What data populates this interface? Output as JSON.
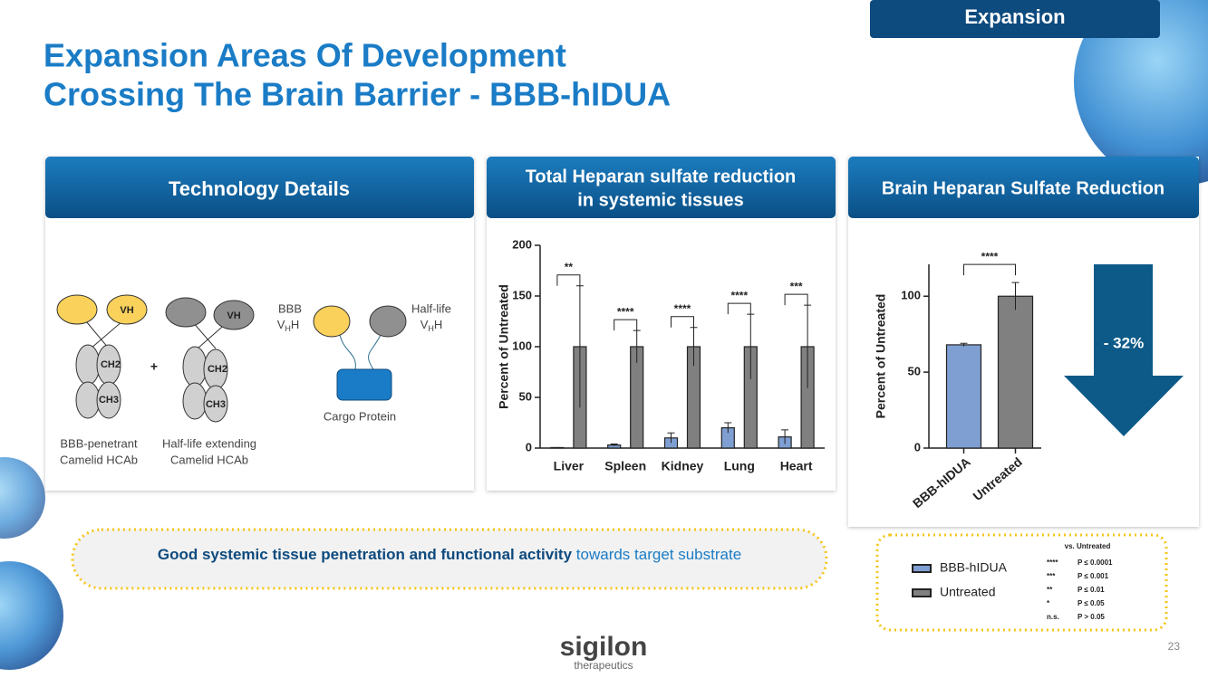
{
  "tag": "Expansion",
  "title": [
    "Expansion Areas Of Development",
    "Crossing The Brain Barrier - BBB-hIDUA"
  ],
  "panels": {
    "technology": {
      "header": "Technology Details",
      "diagram": {
        "vh1": "VH",
        "vh2": "VH",
        "ch2a": "CH2",
        "ch3a": "CH3",
        "ch2b": "CH2",
        "ch3b": "CH3",
        "plus": "+",
        "bbb": "BBB",
        "halflife": "Half-life",
        "v": "V",
        "sub": "H",
        "tail": "H",
        "cargo": "Cargo Protein",
        "caption1": [
          "BBB-penetrant",
          "Camelid HCAb"
        ],
        "caption2": [
          "Half-life extending",
          "Camelid HCAb"
        ]
      }
    },
    "systemic": {
      "header": [
        "Total Heparan sulfate reduction",
        "in systemic tissues"
      ]
    },
    "brain": {
      "header": "Brain Heparan Sulfate Reduction"
    }
  },
  "chart_data": [
    {
      "type": "bar",
      "ylabel": "Percent of Untreated",
      "categories": [
        "Liver",
        "Spleen",
        "Kidney",
        "Lung",
        "Heart"
      ],
      "series": [
        {
          "name": "BBB-hIDUA",
          "color": "#7f9fd2",
          "values": [
            0.5,
            3,
            10,
            20,
            11
          ],
          "errors": [
            0,
            1,
            5,
            5,
            7
          ]
        },
        {
          "name": "Untreated",
          "color": "#808080",
          "values": [
            100,
            100,
            100,
            100,
            100
          ],
          "errors": [
            60,
            16,
            19,
            32,
            41
          ]
        }
      ],
      "annotations": [
        "**",
        "****",
        "****",
        "****",
        "***"
      ],
      "ylim": [
        0,
        200
      ],
      "yticks": [
        0,
        50,
        100,
        150,
        200
      ]
    },
    {
      "type": "bar",
      "ylabel": "Percent of Untreated",
      "categories": [
        "BBB-hIDUA",
        "Untreated"
      ],
      "values": [
        68,
        100
      ],
      "errors": [
        1,
        9
      ],
      "colors": [
        "#7f9fd2",
        "#808080"
      ],
      "annotation": "****",
      "callout": "- 32%",
      "ylim": [
        0,
        121
      ],
      "yticks": [
        0,
        50,
        100
      ]
    }
  ],
  "banner": {
    "bold": "Good systemic tissue penetration and functional activity",
    "rest": " towards target substrate"
  },
  "significance": {
    "title": "vs. Untreated",
    "rows": [
      [
        "****",
        "P ≤ 0.0001"
      ],
      [
        "***",
        "P ≤ 0.001"
      ],
      [
        "**",
        "P ≤ 0.01"
      ],
      [
        "*",
        "P ≤ 0.05"
      ],
      [
        "n.s.",
        "P > 0.05"
      ]
    ]
  },
  "logo": {
    "name": "sigilon",
    "sub": "therapeutics"
  },
  "page": "23"
}
